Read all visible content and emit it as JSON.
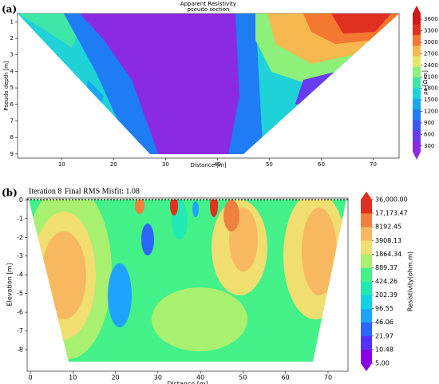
{
  "chart_data": [
    {
      "type": "contour",
      "panel_label": "(a)",
      "title": "Apparent Resistivity",
      "subtitle": "pseudo section",
      "x_label": "Distance [m]",
      "y_label": "Pseudo depth [m]",
      "colorbar_label": "ρa [Ω·m]",
      "xlim": [
        1.5,
        75
      ],
      "xticks": [
        10,
        20,
        30,
        40,
        50,
        60,
        70
      ],
      "ylim": [
        9.25,
        0.5
      ],
      "yticks": [
        1,
        2,
        3,
        4,
        5,
        6,
        7,
        8,
        9
      ],
      "clim": [
        150,
        3750
      ],
      "colorbar_log": false,
      "colorbar_ticks": [
        300,
        600,
        900,
        1200,
        1500,
        1800,
        2100,
        2400,
        2700,
        3000,
        3300,
        3600
      ],
      "colormap": [
        "#8a2be2",
        "#6a3cf0",
        "#3a58f5",
        "#1e7cf5",
        "#18a8f0",
        "#1ed2d8",
        "#3ee6a8",
        "#8cf07a",
        "#e0e868",
        "#f8b850",
        "#f47830",
        "#e03020",
        "#d01818"
      ]
    },
    {
      "type": "contour",
      "panel_label": "(b)",
      "title": "Iteration 8",
      "subtitle": "Final RMS Misfit: 1.08",
      "x_label": "Distance [m]",
      "y_label": "Elevation [m]",
      "colorbar_label": "Resistivity(ohm.m)",
      "xlim": [
        -0.75,
        74.7
      ],
      "xticks": [
        0,
        10,
        20,
        30,
        40,
        50,
        60,
        70
      ],
      "ylim": [
        -9.15,
        0.1
      ],
      "yticks": [
        0,
        -1,
        -2,
        -3,
        -4,
        -5,
        -6,
        -7,
        -8
      ],
      "clim": [
        5,
        36000
      ],
      "colorbar_log": true,
      "colorbar_ticks": [
        {
          "value": 5,
          "label": "5.00"
        },
        {
          "value": 10.48,
          "label": "10.48"
        },
        {
          "value": 21.97,
          "label": "21.97"
        },
        {
          "value": 46.06,
          "label": "46.06"
        },
        {
          "value": 96.55,
          "label": "96.55"
        },
        {
          "value": 202.39,
          "label": "202.39"
        },
        {
          "value": 424.26,
          "label": "424.26"
        },
        {
          "value": 889.37,
          "label": "889.37"
        },
        {
          "value": 1864.34,
          "label": "1864.34"
        },
        {
          "value": 3908.13,
          "label": "3908.13"
        },
        {
          "value": 8192.45,
          "label": "8192.45"
        },
        {
          "value": 17173.47,
          "label": "17,173.47"
        },
        {
          "value": 36000,
          "label": "36,000.00"
        }
      ],
      "colormap": [
        "#8a00e0",
        "#5530ff",
        "#2a66ff",
        "#1ea4ff",
        "#12d2e6",
        "#22e8b4",
        "#44f088",
        "#a8f070",
        "#f0de70",
        "#f8b860",
        "#f08040",
        "#e03020"
      ]
    }
  ]
}
